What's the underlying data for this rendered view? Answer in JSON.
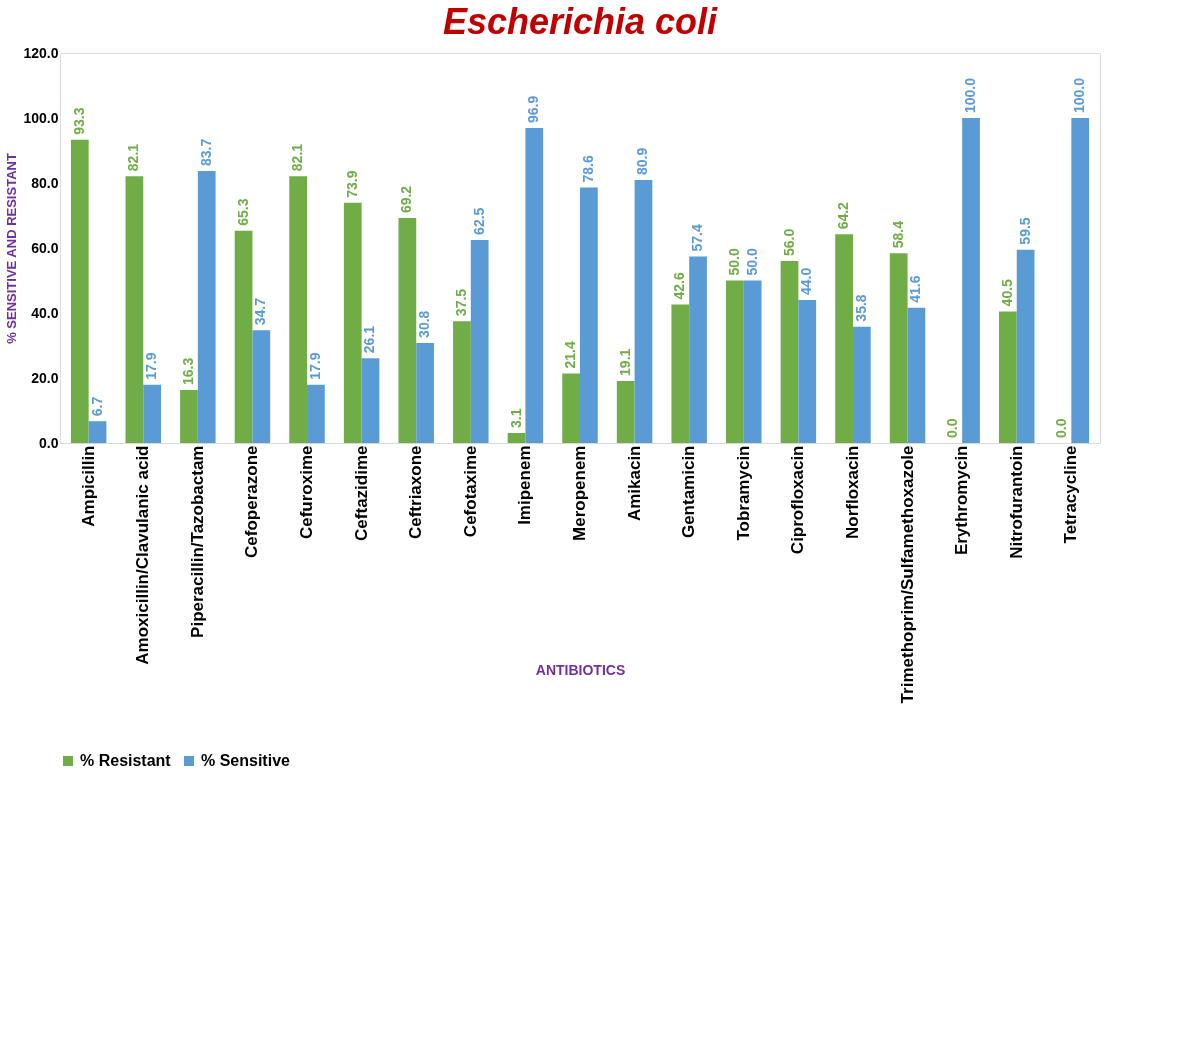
{
  "chart_data": {
    "type": "bar",
    "title": "Escherichia coli",
    "xlabel": "ANTIBIOTICS",
    "ylabel": "% SENSITIVE AND RESISTANT",
    "categories": [
      "Ampicillin",
      "Amoxicillin/Clavulanic acid",
      "Piperacillin/Tazobactam",
      "Cefoperazone",
      "Cefuroxime",
      "Ceftazidime",
      "Ceftriaxone",
      "Cefotaxime",
      "Imipenem",
      "Meropenem",
      "Amikacin",
      "Gentamicin",
      "Tobramycin",
      "Ciprofloxacin",
      "Norfloxacin",
      "Trimethoprim/Sulfamethoxazole",
      "Erythromycin",
      "Nitrofurantoin",
      "Tetracycline"
    ],
    "series": [
      {
        "name": "% Resistant",
        "color": "#70ad47",
        "values": [
          93.3,
          82.1,
          16.3,
          65.3,
          82.1,
          73.9,
          69.2,
          37.5,
          3.1,
          21.4,
          19.1,
          42.6,
          50.0,
          56.0,
          64.2,
          58.4,
          0.0,
          40.5,
          0.0
        ],
        "value_labels": [
          "93.3",
          "82.1",
          "16.3",
          "65.3",
          "82.1",
          "73.9",
          "69.2",
          "37.5",
          "3.1",
          "21.4",
          "19.1",
          "42.6",
          "50.0",
          "56.0",
          "64.2",
          "58.4",
          "0.0",
          "40.5",
          "0.0"
        ]
      },
      {
        "name": "% Sensitive",
        "color": "#5b9bd5",
        "values": [
          6.7,
          17.9,
          83.7,
          34.7,
          17.9,
          26.1,
          30.8,
          62.5,
          96.9,
          78.6,
          80.9,
          57.4,
          50.0,
          44.0,
          35.8,
          41.6,
          100.0,
          59.5,
          100.0
        ],
        "value_labels": [
          "6.7",
          "17.9",
          "83.7",
          "34.7",
          "17.9",
          "26.1",
          "30.8",
          "62.5",
          "96.9",
          "78.6",
          "80.9",
          "57.4",
          "50.0",
          "44.0",
          "35.8",
          "41.6",
          "100.0",
          "59.5",
          "100.0"
        ]
      }
    ],
    "ylim": [
      0,
      120
    ],
    "yticks": [
      {
        "value": 0,
        "label": "0.0"
      },
      {
        "value": 20,
        "label": "20.0"
      },
      {
        "value": 40,
        "label": "40.0"
      },
      {
        "value": 60,
        "label": "60.0"
      },
      {
        "value": 80,
        "label": "80.0"
      },
      {
        "value": 100,
        "label": "100.0"
      },
      {
        "value": 120,
        "label": "120.0"
      }
    ],
    "grid": false,
    "legend": "bottom"
  }
}
